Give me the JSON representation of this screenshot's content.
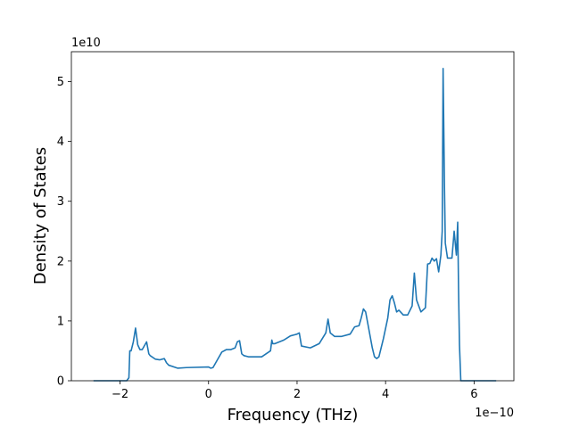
{
  "chart_data": {
    "type": "line",
    "xlabel": "Frequency (THz)",
    "ylabel": "Density of States",
    "x_offset_label": "1e−10",
    "y_offset_label": "1e10",
    "x_scale": 1e-10,
    "y_scale": 10000000000.0,
    "xlim": [
      -3.1e-10,
      6.9e-10
    ],
    "ylim": [
      0,
      55000000000.0
    ],
    "xticks": [
      {
        "value": -2e-10,
        "label": "−2"
      },
      {
        "value": 0,
        "label": "0"
      },
      {
        "value": 2e-10,
        "label": "2"
      },
      {
        "value": 4e-10,
        "label": "4"
      },
      {
        "value": 6e-10,
        "label": "6"
      }
    ],
    "yticks": [
      {
        "value": 0,
        "label": "0"
      },
      {
        "value": 10000000000.0,
        "label": "1"
      },
      {
        "value": 20000000000.0,
        "label": "2"
      },
      {
        "value": 30000000000.0,
        "label": "3"
      },
      {
        "value": 40000000000.0,
        "label": "4"
      },
      {
        "value": 50000000000.0,
        "label": "5"
      }
    ],
    "grid": false,
    "legend": "none",
    "series": [
      {
        "color": "#1f77b4",
        "x": [
          -2.6e-10,
          -1.85e-10,
          -1.8e-10,
          -1.78e-10,
          -1.75e-10,
          -1.7e-10,
          -1.65e-10,
          -1.6e-10,
          -1.55e-10,
          -1.5e-10,
          -1.4e-10,
          -1.35e-10,
          -1.32e-10,
          -1.2e-10,
          -1.1e-10,
          -1e-10,
          -9.5e-11,
          -9e-11,
          -7e-11,
          -5e-11,
          0,
          5e-12,
          1e-11,
          2e-11,
          3e-11,
          4e-11,
          5e-11,
          6e-11,
          6.5e-11,
          7e-11,
          7.5e-11,
          8e-11,
          9e-11,
          1.2e-10,
          1.4e-10,
          1.43e-10,
          1.45e-10,
          1.5e-10,
          1.7e-10,
          1.85e-10,
          1.95e-10,
          2e-10,
          2.05e-10,
          2.1e-10,
          2.3e-10,
          2.5e-10,
          2.65e-10,
          2.7e-10,
          2.75e-10,
          2.85e-10,
          3e-10,
          3.2e-10,
          3.3e-10,
          3.4e-10,
          3.45e-10,
          3.5e-10,
          3.55e-10,
          3.6e-10,
          3.7e-10,
          3.75e-10,
          3.8e-10,
          3.85e-10,
          3.95e-10,
          4.05e-10,
          4.1e-10,
          4.15e-10,
          4.2e-10,
          4.25e-10,
          4.3e-10,
          4.4e-10,
          4.5e-10,
          4.6e-10,
          4.65e-10,
          4.7e-10,
          4.8e-10,
          4.9e-10,
          4.95e-10,
          5e-10,
          5.05e-10,
          5.1e-10,
          5.15e-10,
          5.2e-10,
          5.25e-10,
          5.28e-10,
          5.3e-10,
          5.33e-10,
          5.35e-10,
          5.4e-10,
          5.5e-10,
          5.55e-10,
          5.6e-10,
          5.63e-10,
          5.65e-10,
          5.67e-10,
          5.7e-10,
          5.75e-10,
          5.8e-10,
          6.5e-10
        ],
        "y": [
          0,
          0,
          500000000.0,
          5000000000.0,
          5000000000.0,
          6500000000.0,
          8800000000.0,
          6000000000.0,
          5200000000.0,
          5200000000.0,
          6500000000.0,
          4500000000.0,
          4200000000.0,
          3600000000.0,
          3500000000.0,
          3700000000.0,
          3000000000.0,
          2600000000.0,
          2100000000.0,
          2200000000.0,
          2300000000.0,
          2100000000.0,
          2200000000.0,
          3500000000.0,
          4800000000.0,
          5200000000.0,
          5200000000.0,
          5500000000.0,
          6500000000.0,
          6700000000.0,
          4500000000.0,
          4200000000.0,
          4000000000.0,
          4000000000.0,
          5000000000.0,
          6800000000.0,
          6200000000.0,
          6200000000.0,
          6800000000.0,
          7500000000.0,
          7700000000.0,
          7800000000.0,
          8000000000.0,
          5800000000.0,
          5500000000.0,
          6200000000.0,
          8000000000.0,
          10300000000.0,
          8000000000.0,
          7400000000.0,
          7400000000.0,
          7800000000.0,
          9000000000.0,
          9200000000.0,
          10500000000.0,
          12000000000.0,
          11500000000.0,
          9500000000.0,
          5500000000.0,
          4000000000.0,
          3700000000.0,
          4000000000.0,
          7000000000.0,
          10500000000.0,
          13500000000.0,
          14200000000.0,
          13000000000.0,
          11500000000.0,
          11800000000.0,
          11000000000.0,
          11000000000.0,
          12500000000.0,
          18000000000.0,
          13500000000.0,
          11500000000.0,
          12200000000.0,
          19500000000.0,
          19600000000.0,
          20500000000.0,
          20000000000.0,
          20400000000.0,
          18200000000.0,
          21000000000.0,
          25000000000.0,
          52200000000.0,
          33000000000.0,
          23000000000.0,
          20500000000.0,
          20500000000.0,
          25000000000.0,
          21000000000.0,
          26500000000.0,
          15000000000.0,
          6000000000.0,
          0,
          0,
          0,
          0
        ]
      }
    ]
  }
}
